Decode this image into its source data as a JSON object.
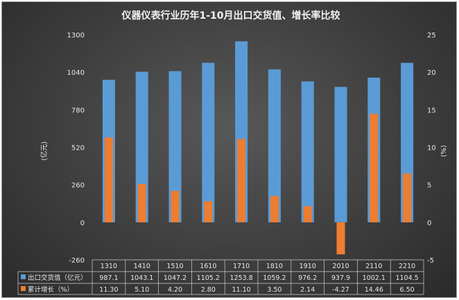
{
  "chart_data": {
    "type": "bar",
    "title": "仪器仪表行业历年1-10月出口交货值、增长率比较",
    "categories": [
      "1310",
      "1410",
      "1510",
      "1610",
      "1710",
      "1810",
      "1910",
      "2010",
      "2110",
      "2210"
    ],
    "series": [
      {
        "name": "出口交货值（亿元）",
        "axis": "left",
        "color": "#5b9bd5",
        "values": [
          987.1,
          1043.1,
          1047.2,
          1105.2,
          1253.8,
          1059.2,
          976.2,
          937.9,
          1002.1,
          1104.5
        ],
        "display": [
          "987.1",
          "1043.1",
          "1047.2",
          "1105.2",
          "1253.8",
          "1059.2",
          "976.2",
          "937.9",
          "1002.1",
          "1104.5"
        ]
      },
      {
        "name": "累计增长（%）",
        "axis": "right",
        "color": "#ed7d31",
        "values": [
          11.3,
          5.1,
          4.2,
          2.8,
          11.1,
          3.5,
          2.14,
          -4.27,
          14.46,
          6.5
        ],
        "display": [
          "11.30",
          "5.10",
          "4.20",
          "2.80",
          "11.10",
          "3.50",
          "2.14",
          "-4.27",
          "14.46",
          "6.50"
        ]
      }
    ],
    "ylabel_left": "(亿元)",
    "ylabel_right": "(%)",
    "ylim_left": [
      -260,
      1300
    ],
    "ylim_right": [
      -5,
      25
    ],
    "yticks_left": [
      "1300",
      "1040",
      "780",
      "520",
      "260",
      "0",
      "-260"
    ],
    "yticks_right": [
      "25",
      "20",
      "15",
      "10",
      "5",
      "0",
      "-5"
    ],
    "grid": false,
    "legend": "data table below chart"
  }
}
